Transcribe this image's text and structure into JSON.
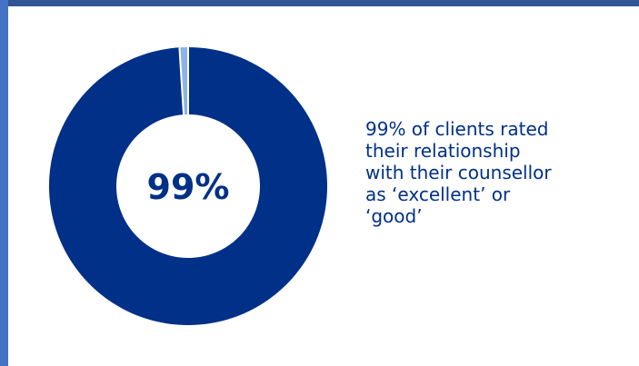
{
  "chart_data": {
    "type": "pie",
    "variant": "donut",
    "slices": [
      {
        "value": 99,
        "color": "#003087"
      },
      {
        "value": 1,
        "color": "#8fb3e6"
      }
    ],
    "center_label": "99%",
    "caption_lines": [
      "99% of clients rated",
      "their relationship",
      "with their counsellor",
      "as ‘excellent’ or",
      "‘good’"
    ]
  }
}
